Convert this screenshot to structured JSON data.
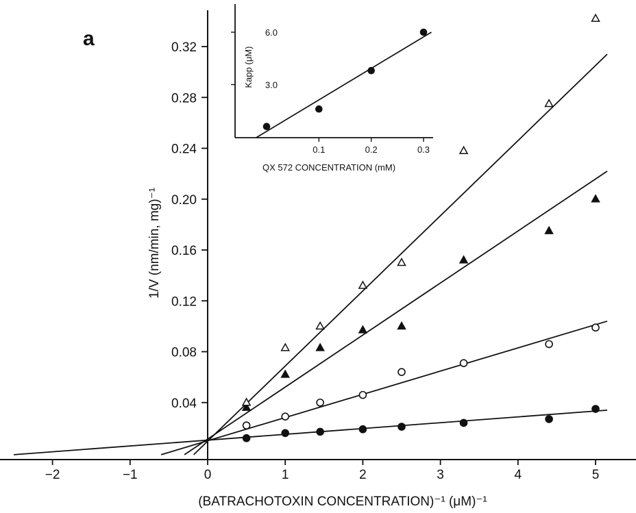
{
  "panel_label": "a",
  "chart_data": [
    {
      "type": "scatter",
      "title": "",
      "xlabel": "(BATRACHOTOXIN CONCENTRATION)⁻¹ (μM)⁻¹",
      "ylabel": "1/V (nm/min, mg)⁻¹",
      "xlim": [
        -2.6,
        5.6
      ],
      "ylim": [
        -0.005,
        0.345
      ],
      "x_ticks": [
        -2,
        -1,
        0,
        1,
        2,
        3,
        4,
        5
      ],
      "x_tick_labels": [
        "−2",
        "−1",
        "0",
        "1",
        "2",
        "3",
        "4",
        "5"
      ],
      "y_ticks": [
        0.04,
        0.08,
        0.12,
        0.16,
        0.2,
        0.24,
        0.28,
        0.32
      ],
      "y_tick_labels": [
        "0.04",
        "0.08",
        "0.12",
        "0.16",
        "0.20",
        "0.24",
        "0.28",
        "0.32"
      ],
      "grid": false,
      "legend": "none",
      "series": [
        {
          "marker": "filled-circle",
          "points": [
            [
              0.5,
              0.012
            ],
            [
              1.0,
              0.016
            ],
            [
              1.45,
              0.017
            ],
            [
              2.0,
              0.019
            ],
            [
              2.5,
              0.021
            ],
            [
              3.3,
              0.024
            ],
            [
              4.4,
              0.027
            ],
            [
              5.0,
              0.035
            ]
          ],
          "fit_line": [
            [
              -2.5,
              -0.001
            ],
            [
              5.15,
              0.034
            ]
          ]
        },
        {
          "marker": "open-circle",
          "points": [
            [
              0.5,
              0.022
            ],
            [
              1.0,
              0.029
            ],
            [
              1.45,
              0.04
            ],
            [
              2.0,
              0.046
            ],
            [
              2.5,
              0.064
            ],
            [
              3.3,
              0.071
            ],
            [
              4.4,
              0.086
            ],
            [
              5.0,
              0.099
            ]
          ],
          "fit_line": [
            [
              -0.6,
              -0.001
            ],
            [
              5.15,
              0.104
            ]
          ]
        },
        {
          "marker": "filled-triangle",
          "points": [
            [
              0.5,
              0.036
            ],
            [
              1.0,
              0.062
            ],
            [
              1.45,
              0.083
            ],
            [
              2.0,
              0.097
            ],
            [
              2.5,
              0.1
            ],
            [
              3.3,
              0.152
            ],
            [
              4.4,
              0.175
            ],
            [
              5.0,
              0.2
            ]
          ],
          "fit_line": [
            [
              -0.3,
              -0.001
            ],
            [
              5.15,
              0.222
            ]
          ]
        },
        {
          "marker": "open-triangle",
          "points": [
            [
              0.5,
              0.04
            ],
            [
              1.0,
              0.083
            ],
            [
              1.45,
              0.1
            ],
            [
              2.0,
              0.132
            ],
            [
              2.5,
              0.15
            ],
            [
              3.3,
              0.238
            ],
            [
              4.4,
              0.275
            ],
            [
              5.0,
              0.342
            ]
          ],
          "fit_line": [
            [
              -0.18,
              -0.001
            ],
            [
              5.15,
              0.314
            ]
          ]
        }
      ]
    },
    {
      "type": "scatter",
      "title": "",
      "xlabel": "QX 572 CONCENTRATION (mM)",
      "ylabel": "Kapp (μM)",
      "xlim": [
        -0.05,
        0.33
      ],
      "ylim": [
        -0.7,
        7.0
      ],
      "x_ticks": [
        0.1,
        0.2,
        0.3
      ],
      "x_tick_labels": [
        "0.1",
        "0.2",
        "0.3"
      ],
      "y_ticks": [
        3.0,
        6.0
      ],
      "y_tick_labels": [
        "3.0",
        "6.0"
      ],
      "grid": false,
      "legend": "none",
      "series": [
        {
          "marker": "filled-circle",
          "points": [
            [
              0.0,
              0.6
            ],
            [
              0.1,
              1.6
            ],
            [
              0.2,
              3.8
            ],
            [
              0.3,
              6.0
            ]
          ],
          "fit_line": [
            [
              -0.02,
              0.0
            ],
            [
              0.315,
              6.0
            ]
          ]
        }
      ]
    }
  ]
}
